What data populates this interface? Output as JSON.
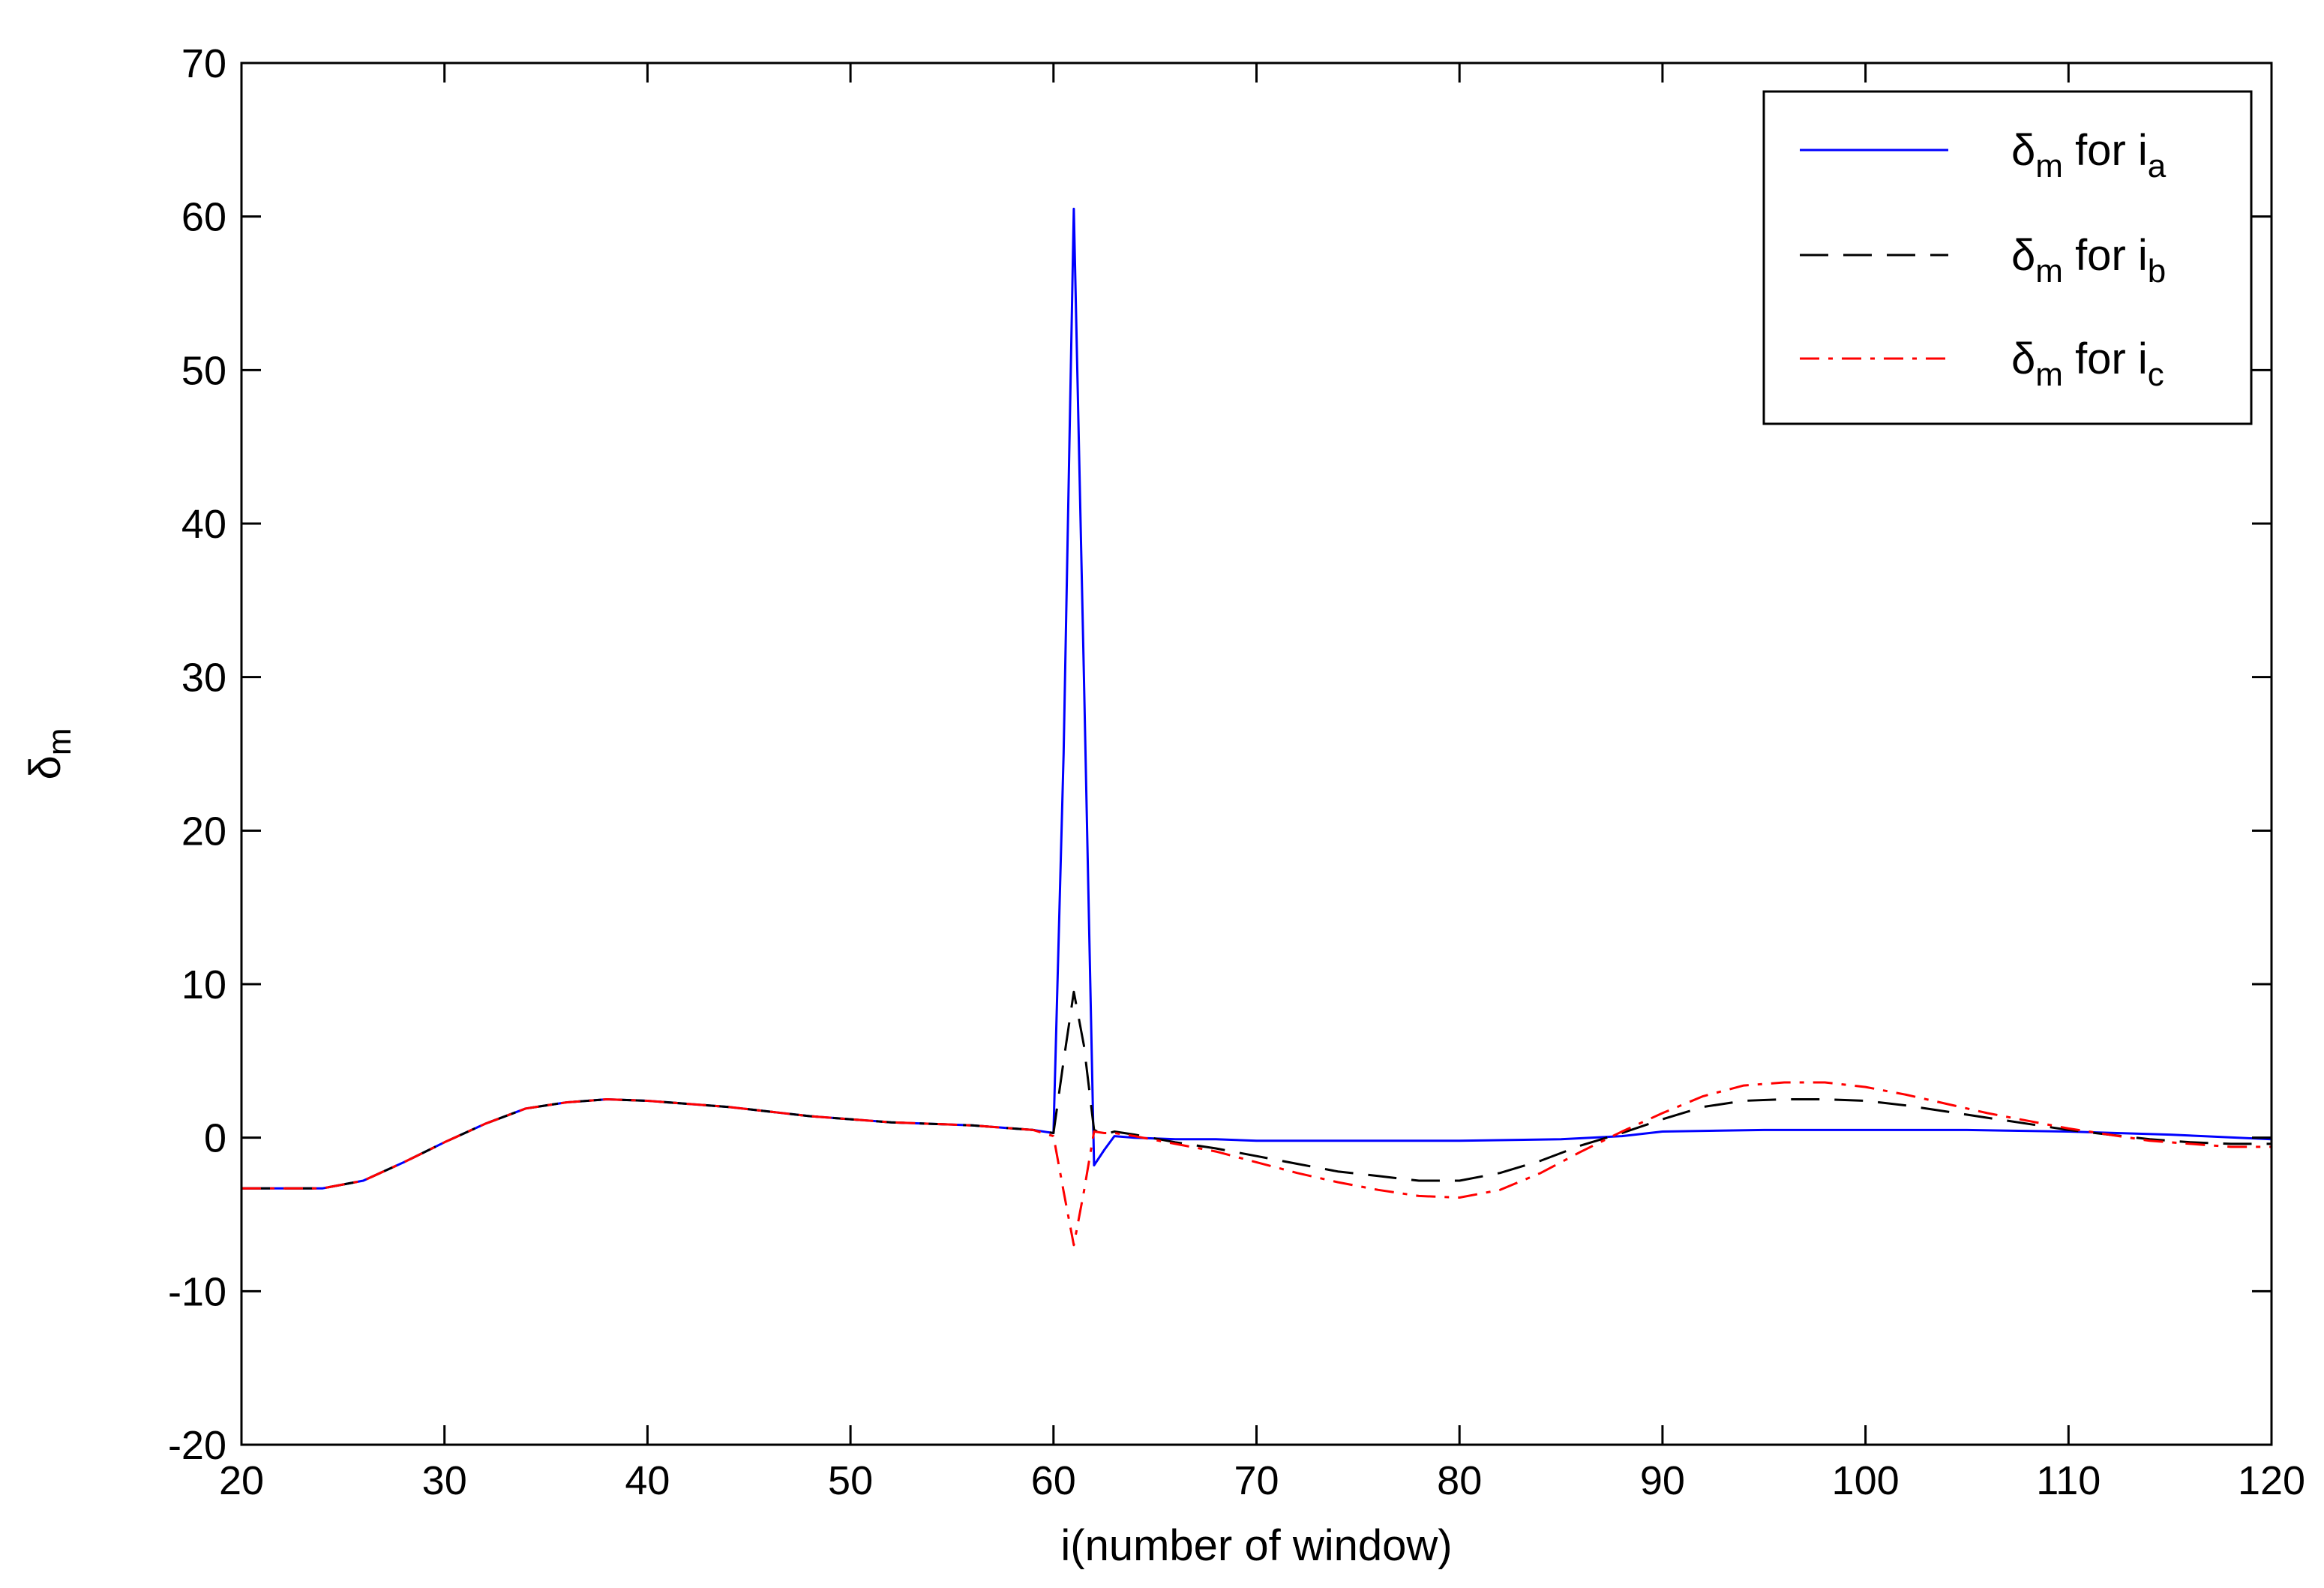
{
  "chart_data": {
    "type": "line",
    "title": "",
    "xlabel": "i(number of window)",
    "ylabel": {
      "main": "δ",
      "sub": "m"
    },
    "xlim": [
      20,
      120
    ],
    "ylim": [
      -20,
      70
    ],
    "xticks": [
      20,
      30,
      40,
      50,
      60,
      70,
      80,
      90,
      100,
      110,
      120
    ],
    "yticks": [
      -20,
      -10,
      0,
      10,
      20,
      30,
      40,
      50,
      60,
      70
    ],
    "grid": false,
    "legend_position": "top-right",
    "series": [
      {
        "name": "δm for ia",
        "label": {
          "delta": "δ",
          "delta_sub": "m",
          "mid": " for i",
          "sub": "a"
        },
        "color": "#0000ff",
        "style": "solid",
        "x": [
          20,
          24,
          26,
          28,
          30,
          32,
          34,
          36,
          38,
          40,
          42,
          44,
          46,
          48,
          50,
          52,
          54,
          56,
          58,
          59,
          60,
          60.5,
          61,
          61.5,
          62,
          62.5,
          63,
          64,
          66,
          68,
          70,
          75,
          80,
          85,
          88,
          90,
          95,
          100,
          105,
          110,
          115,
          120
        ],
        "y": [
          -3.3,
          -3.3,
          -2.8,
          -1.6,
          -0.3,
          0.9,
          1.9,
          2.3,
          2.5,
          2.4,
          2.2,
          2.0,
          1.7,
          1.4,
          1.2,
          1.0,
          0.9,
          0.8,
          0.6,
          0.5,
          0.3,
          25,
          60.5,
          30,
          -1.8,
          -0.8,
          0.1,
          0.0,
          -0.1,
          -0.1,
          -0.2,
          -0.2,
          -0.2,
          -0.1,
          0.1,
          0.4,
          0.5,
          0.5,
          0.5,
          0.4,
          0.2,
          -0.1
        ]
      },
      {
        "name": "δm for ib",
        "label": {
          "delta": "δ",
          "delta_sub": "m",
          "mid": " for i",
          "sub": "b"
        },
        "color": "#000000",
        "style": "dashed",
        "x": [
          20,
          24,
          26,
          28,
          30,
          32,
          34,
          36,
          38,
          40,
          42,
          44,
          46,
          48,
          50,
          52,
          54,
          56,
          58,
          59,
          60,
          60.5,
          61,
          61.5,
          62,
          62.5,
          63,
          64,
          66,
          68,
          70,
          72,
          74,
          76,
          78,
          80,
          82,
          84,
          86,
          88,
          90,
          92,
          94,
          96,
          98,
          100,
          102,
          104,
          106,
          108,
          110,
          112,
          114,
          116,
          118,
          120
        ],
        "y": [
          -3.3,
          -3.3,
          -2.8,
          -1.6,
          -0.3,
          0.9,
          1.9,
          2.3,
          2.5,
          2.4,
          2.2,
          2.0,
          1.7,
          1.4,
          1.2,
          1.0,
          0.9,
          0.8,
          0.6,
          0.5,
          0.3,
          5.0,
          9.5,
          6.0,
          0.5,
          0.2,
          0.4,
          0.2,
          -0.3,
          -0.7,
          -1.2,
          -1.7,
          -2.2,
          -2.5,
          -2.8,
          -2.8,
          -2.3,
          -1.5,
          -0.5,
          0.3,
          1.2,
          2.0,
          2.4,
          2.5,
          2.5,
          2.4,
          2.1,
          1.7,
          1.3,
          0.9,
          0.5,
          0.2,
          -0.1,
          -0.3,
          -0.4,
          -0.4
        ]
      },
      {
        "name": "δm for ic",
        "label": {
          "delta": "δ",
          "delta_sub": "m",
          "mid": " for i",
          "sub": "c"
        },
        "color": "#ff0000",
        "style": "dashdot",
        "x": [
          20,
          24,
          26,
          28,
          30,
          32,
          34,
          36,
          38,
          40,
          42,
          44,
          46,
          48,
          50,
          52,
          54,
          56,
          58,
          59,
          60,
          60.5,
          61,
          61.5,
          62,
          62.5,
          63,
          64,
          66,
          68,
          70,
          72,
          74,
          76,
          78,
          80,
          82,
          84,
          86,
          88,
          90,
          92,
          94,
          96,
          98,
          100,
          102,
          104,
          106,
          108,
          110,
          112,
          114,
          116,
          118,
          120
        ],
        "y": [
          -3.3,
          -3.3,
          -2.8,
          -1.6,
          -0.3,
          0.9,
          1.9,
          2.3,
          2.5,
          2.4,
          2.2,
          2.0,
          1.7,
          1.4,
          1.2,
          1.0,
          0.9,
          0.8,
          0.6,
          0.5,
          0.1,
          -3.5,
          -7.0,
          -3.5,
          0.4,
          0.3,
          0.3,
          0.1,
          -0.4,
          -0.9,
          -1.6,
          -2.3,
          -2.9,
          -3.4,
          -3.8,
          -3.9,
          -3.4,
          -2.3,
          -0.9,
          0.4,
          1.6,
          2.7,
          3.4,
          3.6,
          3.6,
          3.3,
          2.8,
          2.2,
          1.6,
          1.1,
          0.6,
          0.2,
          -0.2,
          -0.4,
          -0.6,
          -0.6
        ]
      }
    ]
  }
}
